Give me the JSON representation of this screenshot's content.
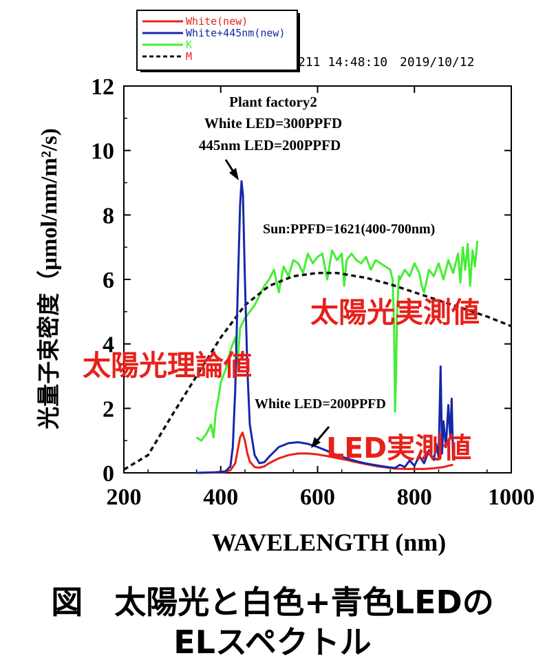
{
  "chart_data": {
    "type": "line",
    "timestamp": "211 14:48:10　2019/10/12",
    "xlabel": "WAVELENGTH (nm)",
    "ylabel": "光量子束密度（μmol/nm/m²/s)",
    "xlim": [
      200,
      1000
    ],
    "ylim": [
      0,
      12
    ],
    "xticks": [
      200,
      400,
      600,
      800,
      1000
    ],
    "yticks": [
      0,
      2,
      4,
      6,
      8,
      10,
      12
    ],
    "legend_position": "top-left (outside plot)",
    "series": [
      {
        "name": "White(new)",
        "color": "#e8201a",
        "style": "solid",
        "x": [
          350,
          390,
          410,
          420,
          430,
          435,
          440,
          445,
          450,
          455,
          460,
          470,
          480,
          490,
          500,
          520,
          540,
          560,
          580,
          600,
          620,
          640,
          660,
          680,
          700,
          720,
          740,
          760,
          780,
          800,
          820,
          840,
          860,
          870,
          880
        ],
        "y": [
          0.0,
          0.01,
          0.03,
          0.08,
          0.3,
          0.7,
          1.1,
          1.25,
          1.0,
          0.6,
          0.35,
          0.18,
          0.16,
          0.2,
          0.3,
          0.45,
          0.55,
          0.6,
          0.6,
          0.57,
          0.52,
          0.46,
          0.4,
          0.33,
          0.27,
          0.21,
          0.17,
          0.13,
          0.12,
          0.12,
          0.12,
          0.14,
          0.18,
          0.22,
          0.25
        ]
      },
      {
        "name": "White+445nm(new)",
        "color": "#1428a8",
        "style": "solid",
        "x": [
          350,
          390,
          410,
          420,
          425,
          430,
          435,
          440,
          443,
          446,
          450,
          455,
          460,
          470,
          480,
          490,
          500,
          520,
          540,
          560,
          580,
          600,
          620,
          640,
          660,
          680,
          700,
          720,
          740,
          760,
          770,
          780,
          790,
          800,
          810,
          820,
          830,
          840,
          845,
          850,
          854,
          857,
          860,
          865,
          870,
          874,
          877,
          880
        ],
        "y": [
          0.0,
          0.02,
          0.05,
          0.2,
          0.8,
          2.6,
          5.6,
          8.3,
          9.05,
          8.6,
          6.0,
          3.2,
          1.5,
          0.55,
          0.3,
          0.33,
          0.5,
          0.8,
          0.92,
          0.95,
          0.9,
          0.8,
          0.68,
          0.55,
          0.45,
          0.36,
          0.29,
          0.24,
          0.19,
          0.15,
          0.25,
          0.18,
          0.38,
          0.22,
          0.52,
          0.3,
          0.7,
          0.4,
          0.9,
          0.5,
          3.3,
          0.6,
          1.6,
          0.8,
          2.1,
          1.1,
          2.3,
          0.4
        ]
      },
      {
        "name": "K",
        "color": "#44ee33",
        "style": "solid",
        "x": [
          350,
          360,
          370,
          380,
          385,
          390,
          395,
          400,
          410,
          420,
          430,
          435,
          440,
          450,
          460,
          470,
          480,
          490,
          500,
          510,
          520,
          530,
          540,
          550,
          560,
          570,
          580,
          590,
          600,
          610,
          620,
          630,
          640,
          650,
          655,
          660,
          670,
          680,
          690,
          700,
          710,
          720,
          730,
          740,
          750,
          755,
          758,
          760,
          762,
          764,
          766,
          768,
          770,
          780,
          790,
          800,
          810,
          815,
          820,
          830,
          840,
          850,
          860,
          870,
          880,
          890,
          895,
          900,
          905,
          910,
          915,
          920,
          925,
          930
        ],
        "y": [
          1.1,
          1.0,
          1.2,
          1.5,
          1.1,
          1.9,
          2.3,
          2.8,
          3.2,
          3.8,
          4.2,
          3.4,
          4.5,
          4.8,
          5.0,
          5.2,
          5.5,
          5.8,
          6.0,
          6.3,
          5.6,
          6.4,
          6.1,
          6.6,
          6.5,
          6.2,
          6.8,
          6.5,
          6.7,
          6.8,
          6.0,
          6.9,
          6.6,
          6.8,
          5.8,
          6.6,
          6.8,
          6.6,
          6.5,
          6.7,
          6.3,
          6.6,
          6.5,
          6.4,
          6.3,
          6.0,
          4.5,
          1.9,
          3.0,
          4.8,
          5.5,
          6.1,
          6.0,
          6.3,
          6.1,
          6.5,
          6.2,
          5.8,
          5.6,
          6.3,
          6.1,
          6.5,
          6.0,
          6.6,
          6.2,
          6.8,
          5.9,
          7.0,
          6.3,
          7.1,
          5.8,
          6.9,
          6.4,
          7.2
        ]
      },
      {
        "name": "M",
        "color": "#111111",
        "style": "dashed",
        "x": [
          200,
          250,
          300,
          350,
          400,
          450,
          500,
          550,
          600,
          640,
          700,
          750,
          800,
          850,
          900,
          950,
          1000
        ],
        "y": [
          0.1,
          0.55,
          1.8,
          3.0,
          4.2,
          5.2,
          5.8,
          6.1,
          6.2,
          6.2,
          6.05,
          5.85,
          5.6,
          5.35,
          5.1,
          4.85,
          4.55
        ]
      }
    ],
    "annotations": {
      "plant_title": "Plant factory2",
      "plant_white": "White LED=300PPFD",
      "plant_445": "445nm LED=200PPFD",
      "sun_ppfd": "Sun:PPFD=1621(400-700nm)",
      "white_200": "White LED=200PPFD",
      "sun_measured": "太陽光実測値",
      "sun_theory": "太陽光理論値",
      "led_measured": "LED実測値"
    },
    "annotation_color": "#e8201a"
  },
  "caption": {
    "line1": "図　太陽光と白色+青色LEDの",
    "line2": "ELスペクトル"
  }
}
